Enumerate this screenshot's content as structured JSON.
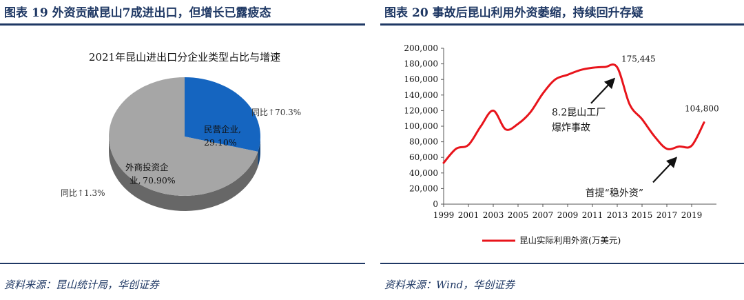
{
  "figures": [
    {
      "label": "图表",
      "number": "19",
      "title": "外资贡献昆山7成进出口，但增长已露疲态",
      "source": "资料来源：昆山统计局，华创证券"
    },
    {
      "label": "图表",
      "number": "20",
      "title": "事故后昆山利用外资萎缩，持续回升存疑",
      "source": "资料来源：Wind，华创证券"
    }
  ],
  "colors": {
    "navy": "#1f3864",
    "private": "#1565c0",
    "foreign": "#a6a6a6",
    "line": "#e8141b"
  },
  "chart_data": [
    {
      "type": "pie",
      "title": "2021年昆山进出口分企业类型占比与增速",
      "slices": [
        {
          "label": "民营企业,",
          "value_label": "29.10%",
          "value": 29.1,
          "growth": "同比↑70.3%",
          "color": "#1565c0"
        },
        {
          "label": "外商投资企",
          "label2": "业,",
          "value_label": "70.90%",
          "value": 70.9,
          "growth": "同比↑1.3%",
          "color": "#a6a6a6"
        }
      ]
    },
    {
      "type": "line",
      "series": [
        {
          "name": "昆山实际利用外资(万美元)",
          "color": "#e8141b",
          "x": [
            1999,
            2000,
            2001,
            2002,
            2003,
            2004,
            2005,
            2006,
            2007,
            2008,
            2009,
            2010,
            2011,
            2012,
            2013,
            2014,
            2015,
            2016,
            2017,
            2018,
            2019,
            2020
          ],
          "y": [
            53000,
            71000,
            76000,
            100000,
            120000,
            96000,
            103000,
            118000,
            142000,
            160000,
            166000,
            172000,
            175000,
            176000,
            175445,
            128000,
            109000,
            87000,
            71000,
            74000,
            75000,
            104800
          ]
        }
      ],
      "xticks": [
        "1999",
        "2001",
        "2003",
        "2005",
        "2007",
        "2009",
        "2011",
        "2013",
        "2015",
        "2017",
        "2019"
      ],
      "yticks": [
        "0",
        "20,000",
        "40,000",
        "60,000",
        "80,000",
        "100,000",
        "120,000",
        "140,000",
        "160,000",
        "180,000",
        "200,000"
      ],
      "xlim": [
        1999,
        2021
      ],
      "ylim": [
        0,
        200000
      ],
      "grid": false,
      "legend": "bottom",
      "data_labels": [
        {
          "text": "175,445",
          "x": 2013,
          "y": 175445
        },
        {
          "text": "104,800",
          "x": 2020,
          "y": 104800
        }
      ],
      "annotations": [
        {
          "line1": "8.2昆山工厂",
          "line2": "爆炸事故",
          "x": 2013,
          "y": 175445
        },
        {
          "text": "首提“稳外资”",
          "x": 2018,
          "y": 74000
        }
      ]
    }
  ]
}
